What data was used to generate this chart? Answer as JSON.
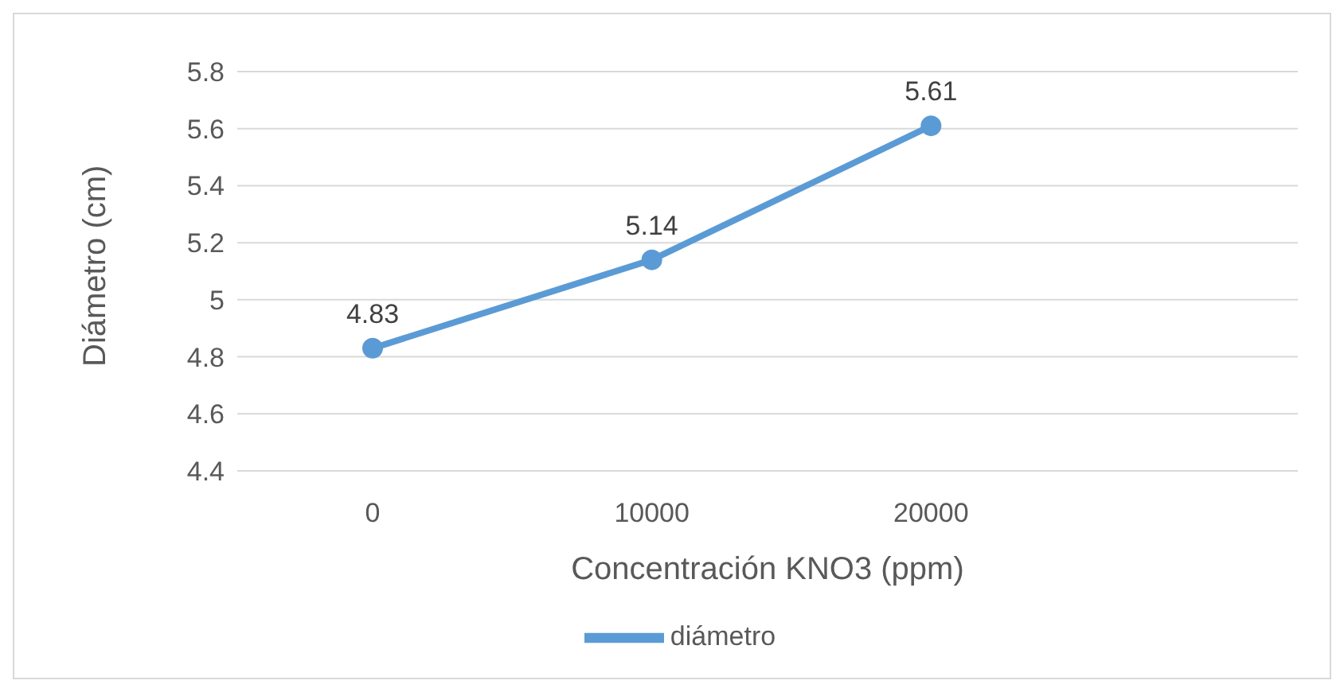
{
  "chart_data": {
    "type": "line",
    "xlabel": "Concentración KNO3 (ppm)",
    "ylabel": "Diámetro (cm)",
    "categories": [
      "0",
      "10000",
      "20000",
      null
    ],
    "series": [
      {
        "name": "diámetro",
        "color": "#5b9bd5",
        "values": [
          4.83,
          5.14,
          5.61,
          null
        ]
      }
    ],
    "ylim": [
      4.4,
      5.8
    ],
    "yticks": [
      4.4,
      4.6,
      4.8,
      5,
      5.2,
      5.4,
      5.6,
      5.8
    ],
    "grid": "y",
    "legend": "bottom",
    "marker": "circle",
    "line_style": "solid",
    "data_labels": true
  }
}
